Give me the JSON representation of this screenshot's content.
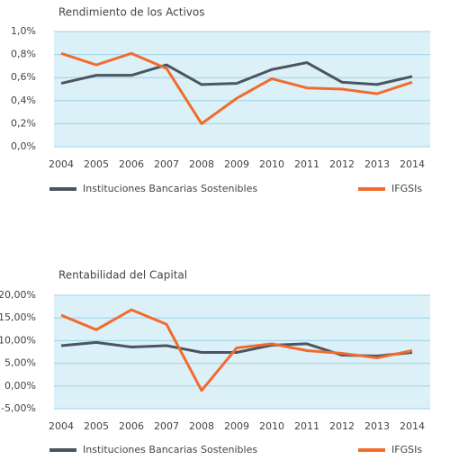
{
  "chart_data": [
    {
      "type": "line",
      "title": "Rendimiento de los Activos",
      "categories": [
        "2004",
        "2005",
        "2006",
        "2007",
        "2008",
        "2009",
        "2010",
        "2011",
        "2012",
        "2013",
        "2014"
      ],
      "series": [
        {
          "name": "Instituciones Bancarias Sostenibles",
          "color": "#4a5560",
          "values": [
            0.55,
            0.62,
            0.62,
            0.71,
            0.54,
            0.55,
            0.67,
            0.73,
            0.56,
            0.54,
            0.61
          ]
        },
        {
          "name": "IFGSIs",
          "color": "#f26b2e",
          "values": [
            0.81,
            0.71,
            0.81,
            0.68,
            0.2,
            0.42,
            0.59,
            0.51,
            0.5,
            0.46,
            0.56
          ]
        }
      ],
      "ylim": [
        0,
        1.0
      ],
      "yticks": [
        {
          "value": 0,
          "label": "0,0%"
        },
        {
          "value": 0.2,
          "label": "0,2%"
        },
        {
          "value": 0.4,
          "label": "0,4%"
        },
        {
          "value": 0.6,
          "label": "0,6%"
        },
        {
          "value": 0.8,
          "label": "0,8%"
        },
        {
          "value": 1.0,
          "label": "1,0%"
        }
      ],
      "grid": true
    },
    {
      "type": "line",
      "title": "Rentabilidad del Capital",
      "categories": [
        "2004",
        "2005",
        "2006",
        "2007",
        "2008",
        "2009",
        "2010",
        "2011",
        "2012",
        "2013",
        "2014"
      ],
      "series": [
        {
          "name": "Instituciones Bancarias Sostenibles",
          "color": "#4a5560",
          "values": [
            8.9,
            9.6,
            8.6,
            8.9,
            7.4,
            7.4,
            9.0,
            9.3,
            6.8,
            6.6,
            7.4
          ]
        },
        {
          "name": "IFGSIs",
          "color": "#f26b2e",
          "values": [
            15.6,
            12.4,
            16.8,
            13.6,
            -1.0,
            8.4,
            9.3,
            7.8,
            7.2,
            6.2,
            7.8
          ]
        }
      ],
      "ylim": [
        -5,
        20
      ],
      "yticks": [
        {
          "value": -5,
          "label": "-5,00%"
        },
        {
          "value": 0,
          "label": "0,00%"
        },
        {
          "value": 5,
          "label": "5,00%"
        },
        {
          "value": 10,
          "label": "10,00%"
        },
        {
          "value": 15,
          "label": "15,00%"
        },
        {
          "value": 20,
          "label": "20,00%"
        }
      ],
      "grid": true
    }
  ]
}
